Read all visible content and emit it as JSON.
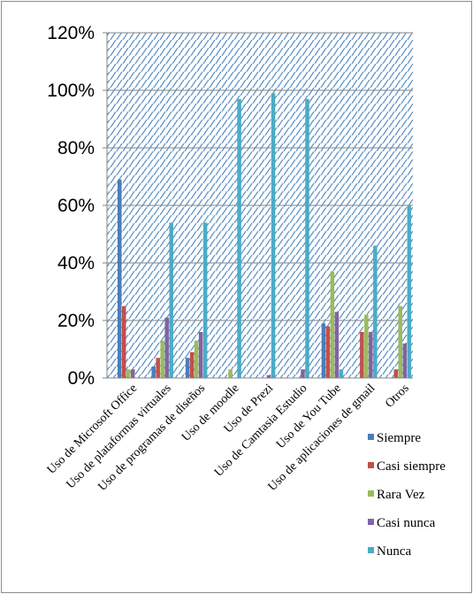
{
  "chart_data": {
    "type": "bar",
    "title": "",
    "xlabel": "",
    "ylabel": "",
    "ylim": [
      0,
      1.2
    ],
    "y_ticks": [
      "0%",
      "20%",
      "40%",
      "60%",
      "80%",
      "100%",
      "120%"
    ],
    "grid": true,
    "legend_position": "right",
    "categories": [
      "Uso de Microsoft Office",
      "Uso de plataformas virtuales",
      "Uso de programas de diseños",
      "Uso de moodle",
      "Uso de Prezi",
      "Uso de Camtasia Estudio",
      "Uso de You Tube",
      "Uso de aplicaciones de gmail",
      "Otros"
    ],
    "series": [
      {
        "name": "Siempre",
        "color": "#4a7ebb",
        "values": [
          0.69,
          0.04,
          0.07,
          0.0,
          0.0,
          0.0,
          0.19,
          0.0,
          0.0
        ]
      },
      {
        "name": "Casi siempre",
        "color": "#c0504d",
        "values": [
          0.25,
          0.07,
          0.09,
          0.0,
          0.0,
          0.0,
          0.18,
          0.16,
          0.03
        ]
      },
      {
        "name": "Rara Vez",
        "color": "#9bbb59",
        "values": [
          0.03,
          0.13,
          0.13,
          0.03,
          0.0,
          0.0,
          0.37,
          0.22,
          0.25
        ]
      },
      {
        "name": "Casi nunca",
        "color": "#8064a2",
        "values": [
          0.03,
          0.21,
          0.16,
          0.0,
          0.01,
          0.03,
          0.23,
          0.16,
          0.12
        ]
      },
      {
        "name": "Nunca",
        "color": "#4bacc6",
        "values": [
          0.0,
          0.54,
          0.54,
          0.97,
          0.99,
          0.97,
          0.03,
          0.46,
          0.6
        ]
      }
    ]
  }
}
